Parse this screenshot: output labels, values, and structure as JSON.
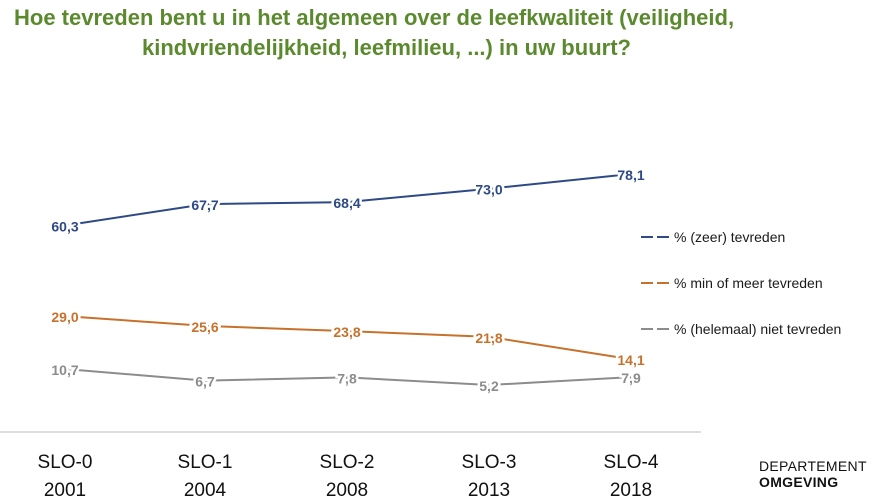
{
  "title_line1": "Hoe tevreden bent u in het algemeen over de leefkwaliteit (veiligheid,",
  "title_line2": "kindvriendelijkheid, leefmilieu, ...) in uw buurt?",
  "brand": {
    "line1": "DEPARTEMENT",
    "line2": "OMGEVING"
  },
  "chart_data": {
    "type": "line",
    "categories": [
      "SLO-0",
      "SLO-1",
      "SLO-2",
      "SLO-3",
      "SLO-4"
    ],
    "category_years": [
      "2001",
      "2004",
      "2008",
      "2013",
      "2018"
    ],
    "series": [
      {
        "name": "% (zeer) tevreden",
        "values": [
          60.3,
          67.7,
          68.4,
          73.0,
          78.1
        ],
        "labels": [
          "60,3",
          "67,7",
          "68,4",
          "73,0",
          "78,1"
        ],
        "color": "#2e4a86"
      },
      {
        "name": "% min of meer tevreden",
        "values": [
          29.0,
          25.6,
          23.8,
          21.8,
          14.1
        ],
        "labels": [
          "29,0",
          "25,6",
          "23,8",
          "21,8",
          "14,1"
        ],
        "color": "#c8712a"
      },
      {
        "name": "% (helemaal) niet tevreden",
        "values": [
          10.7,
          6.7,
          7.8,
          5.2,
          7.9
        ],
        "labels": [
          "10,7",
          "6,7",
          "7,8",
          "5,2",
          "7,9"
        ],
        "color": "#8c8c8c"
      }
    ],
    "legend_position": "right",
    "grid": false
  }
}
